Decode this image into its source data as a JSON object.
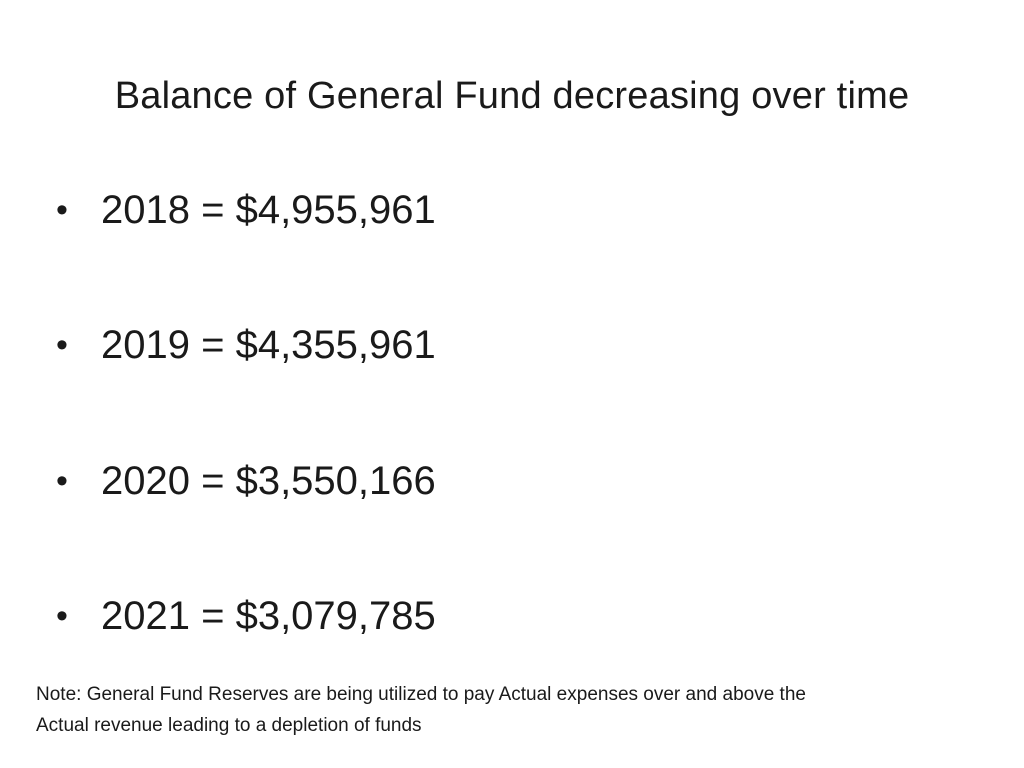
{
  "slide": {
    "title": "Balance of General Fund decreasing over time",
    "bullets": [
      {
        "marker": "•",
        "text": "2018 = $4,955,961"
      },
      {
        "marker": "•",
        "text": "2019 = $4,355,961"
      },
      {
        "marker": "•",
        "text": "2020 = $3,550,166"
      },
      {
        "marker": "•",
        "text": "2021 = $3,079,785"
      }
    ],
    "note": {
      "line1": "Note: General Fund Reserves are being utilized to pay  Actual expenses over and above the",
      "line2": "Actual revenue leading to a depletion of funds"
    }
  }
}
